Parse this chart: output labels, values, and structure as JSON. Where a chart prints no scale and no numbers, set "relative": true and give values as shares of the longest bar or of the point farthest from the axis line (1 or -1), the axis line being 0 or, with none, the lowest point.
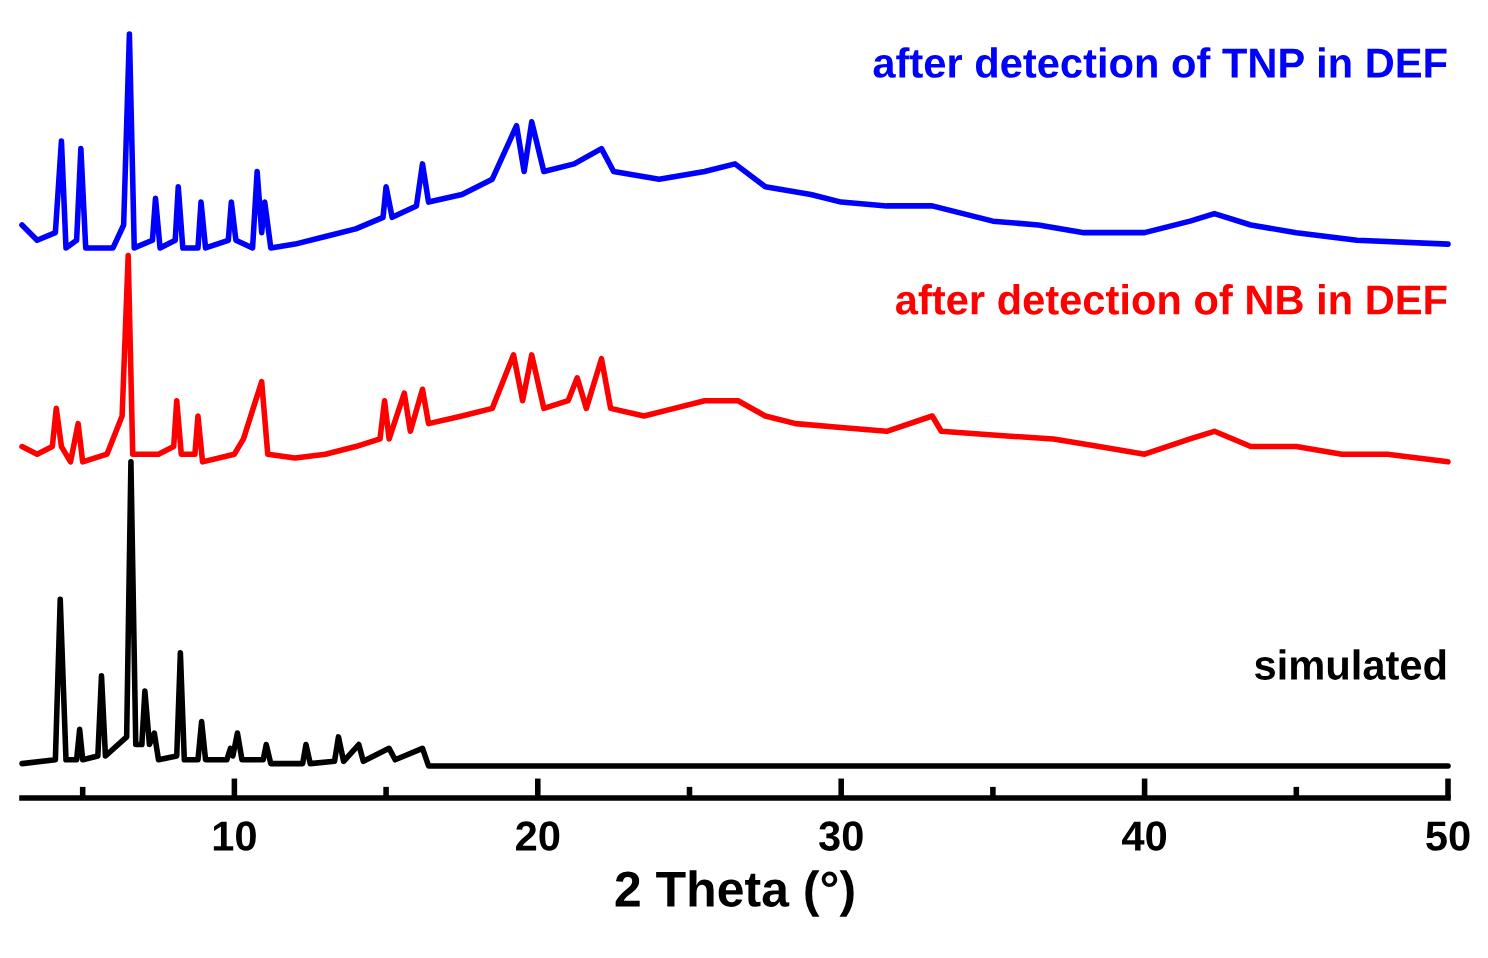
{
  "chart_data": {
    "type": "line",
    "relative": true,
    "xlabel": "2 Theta (°)",
    "xlim": [
      3,
      50
    ],
    "tick_labels": "x",
    "xticks": [
      {
        "value": 5,
        "label": null
      },
      10,
      {
        "value": 15,
        "label": null
      },
      20,
      {
        "value": 25,
        "label": null
      },
      30,
      {
        "value": 35,
        "label": null
      },
      40,
      {
        "value": 45,
        "label": null
      },
      50
    ],
    "series": [
      {
        "name": "simulated",
        "color": "#000000",
        "x": [
          3.0,
          4.1,
          4.26,
          4.45,
          4.8,
          4.9,
          5.0,
          5.5,
          5.62,
          5.75,
          6.45,
          6.59,
          6.75,
          6.95,
          7.05,
          7.2,
          7.36,
          7.5,
          8.1,
          8.22,
          8.35,
          8.8,
          8.92,
          9.05,
          9.75,
          9.87,
          9.95,
          10.1,
          10.25,
          10.95,
          11.05,
          11.2,
          12.25,
          12.36,
          12.5,
          13.3,
          13.43,
          13.6,
          14.1,
          14.25,
          15.1,
          15.3,
          16.2,
          16.4,
          50
        ],
        "values": [
          0.045,
          0.05,
          0.26,
          0.05,
          0.05,
          0.09,
          0.05,
          0.055,
          0.16,
          0.055,
          0.08,
          0.44,
          0.07,
          0.07,
          0.14,
          0.07,
          0.085,
          0.05,
          0.055,
          0.19,
          0.05,
          0.05,
          0.1,
          0.05,
          0.05,
          0.065,
          0.055,
          0.085,
          0.05,
          0.05,
          0.07,
          0.045,
          0.045,
          0.07,
          0.045,
          0.048,
          0.08,
          0.048,
          0.07,
          0.048,
          0.065,
          0.05,
          0.065,
          0.042,
          0.042
        ]
      },
      {
        "name": "after detection of NB in DEF",
        "color": "#ff0000",
        "x": [
          3.0,
          3.5,
          4.0,
          4.13,
          4.3,
          4.6,
          4.85,
          5.0,
          5.8,
          6.3,
          6.5,
          6.65,
          7.5,
          8.0,
          8.1,
          8.25,
          8.7,
          8.8,
          8.95,
          10.0,
          10.3,
          10.9,
          11.1,
          12.0,
          13.0,
          14.0,
          14.8,
          14.95,
          15.1,
          15.6,
          15.8,
          16.2,
          16.4,
          17.5,
          18.5,
          19.2,
          19.5,
          19.8,
          20.2,
          21.0,
          21.3,
          21.6,
          22.1,
          22.4,
          23.5,
          24.5,
          25.5,
          26.6,
          27.5,
          28.5,
          30,
          31.5,
          33.0,
          33.3,
          35,
          37,
          38.5,
          40,
          41.5,
          42.3,
          43.5,
          45,
          46.5,
          48,
          50
        ],
        "values": [
          0.46,
          0.45,
          0.46,
          0.51,
          0.46,
          0.44,
          0.49,
          0.44,
          0.45,
          0.5,
          0.71,
          0.45,
          0.45,
          0.46,
          0.52,
          0.45,
          0.45,
          0.5,
          0.44,
          0.45,
          0.47,
          0.545,
          0.45,
          0.445,
          0.45,
          0.46,
          0.47,
          0.52,
          0.47,
          0.53,
          0.48,
          0.535,
          0.49,
          0.5,
          0.51,
          0.58,
          0.52,
          0.58,
          0.51,
          0.52,
          0.55,
          0.51,
          0.575,
          0.51,
          0.5,
          0.51,
          0.52,
          0.52,
          0.5,
          0.49,
          0.485,
          0.48,
          0.5,
          0.48,
          0.475,
          0.47,
          0.46,
          0.45,
          0.47,
          0.48,
          0.46,
          0.46,
          0.45,
          0.45,
          0.44
        ]
      },
      {
        "name": "after detection of TNP in DEF",
        "color": "#0000ff",
        "x": [
          3.0,
          3.5,
          4.1,
          4.3,
          4.45,
          4.8,
          4.94,
          5.1,
          6.0,
          6.35,
          6.54,
          6.7,
          7.3,
          7.4,
          7.55,
          8.05,
          8.15,
          8.3,
          8.8,
          8.9,
          9.05,
          9.8,
          9.9,
          10.05,
          10.6,
          10.75,
          10.9,
          11.0,
          11.2,
          12.0,
          13.0,
          14.0,
          14.9,
          15.0,
          15.2,
          16.0,
          16.2,
          16.4,
          17.5,
          18.5,
          19.3,
          19.55,
          19.8,
          20.2,
          21.2,
          22.1,
          22.5,
          24,
          25.5,
          26.5,
          27.5,
          29,
          30,
          31.5,
          33,
          35,
          36.5,
          38,
          40,
          41.5,
          42.3,
          43.5,
          45,
          47,
          50
        ],
        "values": [
          0.75,
          0.73,
          0.74,
          0.86,
          0.72,
          0.73,
          0.85,
          0.72,
          0.72,
          0.75,
          1.0,
          0.72,
          0.73,
          0.785,
          0.72,
          0.73,
          0.8,
          0.72,
          0.72,
          0.78,
          0.72,
          0.73,
          0.78,
          0.73,
          0.72,
          0.82,
          0.74,
          0.78,
          0.72,
          0.725,
          0.735,
          0.745,
          0.76,
          0.8,
          0.76,
          0.775,
          0.83,
          0.78,
          0.79,
          0.81,
          0.88,
          0.82,
          0.885,
          0.82,
          0.83,
          0.85,
          0.82,
          0.81,
          0.82,
          0.83,
          0.8,
          0.79,
          0.78,
          0.775,
          0.775,
          0.755,
          0.75,
          0.74,
          0.74,
          0.755,
          0.765,
          0.75,
          0.74,
          0.73,
          0.725
        ]
      }
    ]
  }
}
